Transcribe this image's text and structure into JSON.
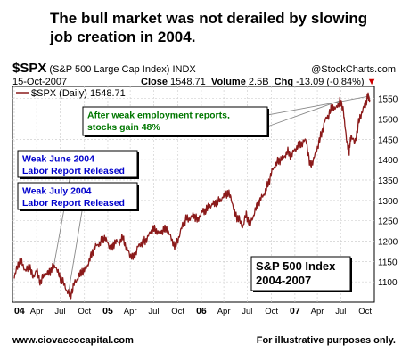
{
  "headline": "The bull market was not derailed by slowing job creation in 2004.",
  "header": {
    "symbol": "$SPX",
    "index_name": "(S&P 500 Large Cap Index)",
    "exchange": "INDX",
    "watermark": "@StockCharts.com",
    "date": "15-Oct-2007",
    "close_label": "Close",
    "close_value": "1548.71",
    "volume_label": "Volume",
    "volume_value": "2.5B",
    "change_label": "Chg",
    "change_value": "-13.09 (-0.84%)",
    "change_arrow": "▼",
    "legend_label": "$SPX (Daily) 1548.71"
  },
  "chart_data": {
    "type": "line",
    "ylim": [
      1050,
      1580
    ],
    "y_ticks": [
      1100,
      1150,
      1200,
      1250,
      1300,
      1350,
      1400,
      1450,
      1500,
      1550
    ],
    "x_ticks": [
      {
        "label": "04",
        "t": 0.0,
        "bold": true
      },
      {
        "label": "Apr",
        "t": 0.24,
        "bold": false
      },
      {
        "label": "Jul",
        "t": 0.49,
        "bold": false
      },
      {
        "label": "Oct",
        "t": 0.75,
        "bold": false
      },
      {
        "label": "05",
        "t": 1.0,
        "bold": true
      },
      {
        "label": "Apr",
        "t": 1.24,
        "bold": false
      },
      {
        "label": "Jul",
        "t": 1.49,
        "bold": false
      },
      {
        "label": "Oct",
        "t": 1.75,
        "bold": false
      },
      {
        "label": "06",
        "t": 2.0,
        "bold": true
      },
      {
        "label": "Apr",
        "t": 2.24,
        "bold": false
      },
      {
        "label": "Jul",
        "t": 2.49,
        "bold": false
      },
      {
        "label": "Oct",
        "t": 2.75,
        "bold": false
      },
      {
        "label": "07",
        "t": 3.0,
        "bold": true
      },
      {
        "label": "Apr",
        "t": 3.24,
        "bold": false
      },
      {
        "label": "Jul",
        "t": 3.49,
        "bold": false
      },
      {
        "label": "Oct",
        "t": 3.75,
        "bold": false
      }
    ],
    "series": [
      {
        "color": "#8b1a1a",
        "points": [
          [
            0.0,
            1108
          ],
          [
            0.04,
            1145
          ],
          [
            0.08,
            1150
          ],
          [
            0.12,
            1125
          ],
          [
            0.16,
            1140
          ],
          [
            0.2,
            1112
          ],
          [
            0.24,
            1128
          ],
          [
            0.28,
            1098
          ],
          [
            0.32,
            1118
          ],
          [
            0.36,
            1120
          ],
          [
            0.4,
            1132
          ],
          [
            0.44,
            1140
          ],
          [
            0.48,
            1115
          ],
          [
            0.52,
            1100
          ],
          [
            0.56,
            1080
          ],
          [
            0.6,
            1064
          ],
          [
            0.64,
            1095
          ],
          [
            0.68,
            1110
          ],
          [
            0.72,
            1125
          ],
          [
            0.76,
            1130
          ],
          [
            0.8,
            1150
          ],
          [
            0.84,
            1175
          ],
          [
            0.88,
            1190
          ],
          [
            0.92,
            1195
          ],
          [
            0.96,
            1210
          ],
          [
            1.0,
            1195
          ],
          [
            1.04,
            1180
          ],
          [
            1.08,
            1200
          ],
          [
            1.12,
            1195
          ],
          [
            1.16,
            1210
          ],
          [
            1.2,
            1182
          ],
          [
            1.24,
            1165
          ],
          [
            1.28,
            1160
          ],
          [
            1.32,
            1185
          ],
          [
            1.36,
            1195
          ],
          [
            1.4,
            1200
          ],
          [
            1.44,
            1215
          ],
          [
            1.48,
            1230
          ],
          [
            1.52,
            1225
          ],
          [
            1.56,
            1220
          ],
          [
            1.6,
            1230
          ],
          [
            1.64,
            1228
          ],
          [
            1.68,
            1205
          ],
          [
            1.72,
            1185
          ],
          [
            1.76,
            1210
          ],
          [
            1.8,
            1240
          ],
          [
            1.84,
            1255
          ],
          [
            1.88,
            1255
          ],
          [
            1.92,
            1265
          ],
          [
            1.96,
            1250
          ],
          [
            2.0,
            1270
          ],
          [
            2.04,
            1275
          ],
          [
            2.08,
            1285
          ],
          [
            2.12,
            1290
          ],
          [
            2.16,
            1295
          ],
          [
            2.2,
            1300
          ],
          [
            2.24,
            1310
          ],
          [
            2.28,
            1320
          ],
          [
            2.32,
            1305
          ],
          [
            2.36,
            1265
          ],
          [
            2.4,
            1255
          ],
          [
            2.44,
            1235
          ],
          [
            2.48,
            1265
          ],
          [
            2.52,
            1240
          ],
          [
            2.56,
            1265
          ],
          [
            2.6,
            1290
          ],
          [
            2.64,
            1305
          ],
          [
            2.68,
            1320
          ],
          [
            2.72,
            1345
          ],
          [
            2.76,
            1375
          ],
          [
            2.8,
            1390
          ],
          [
            2.84,
            1400
          ],
          [
            2.88,
            1405
          ],
          [
            2.92,
            1420
          ],
          [
            2.96,
            1410
          ],
          [
            3.0,
            1425
          ],
          [
            3.04,
            1435
          ],
          [
            3.08,
            1440
          ],
          [
            3.12,
            1450
          ],
          [
            3.16,
            1385
          ],
          [
            3.2,
            1400
          ],
          [
            3.24,
            1430
          ],
          [
            3.28,
            1460
          ],
          [
            3.32,
            1495
          ],
          [
            3.36,
            1510
          ],
          [
            3.4,
            1530
          ],
          [
            3.44,
            1525
          ],
          [
            3.48,
            1545
          ],
          [
            3.52,
            1520
          ],
          [
            3.55,
            1450
          ],
          [
            3.58,
            1420
          ],
          [
            3.6,
            1460
          ],
          [
            3.64,
            1440
          ],
          [
            3.68,
            1490
          ],
          [
            3.72,
            1520
          ],
          [
            3.75,
            1535
          ],
          [
            3.78,
            1556
          ],
          [
            3.8,
            1548
          ]
        ]
      }
    ],
    "annotations": [
      {
        "lines": [
          "After weak employment reports,",
          "stocks gain 48%"
        ],
        "color": "#007700"
      },
      {
        "lines": [
          "Weak June 2004",
          "Labor Report Released"
        ],
        "color": "#0000cc"
      },
      {
        "lines": [
          "Weak July 2004",
          "Labor Report Released"
        ],
        "color": "#0000cc"
      },
      {
        "lines": [
          "S&P 500 Index",
          "2004-2007"
        ],
        "color": "#000000"
      }
    ]
  },
  "footer": {
    "website": "www.ciovaccocapital.com",
    "disclaimer": "For illustrative purposes only."
  }
}
